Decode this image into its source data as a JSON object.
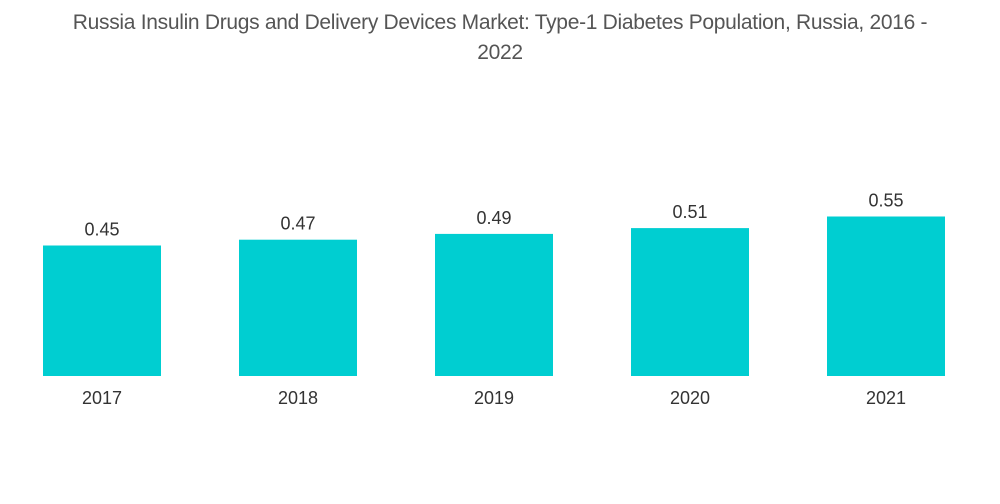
{
  "chart_data": {
    "type": "bar",
    "title": "Russia Insulin Drugs and Delivery Devices Market: Type-1 Diabetes Population, Russia, 2016 - 2022",
    "title_lines": [
      "Russia Insulin Drugs and Delivery Devices Market: Type-1 Diabetes Population, Russia, 2016 -",
      "2022"
    ],
    "categories": [
      "2017",
      "2018",
      "2019",
      "2020",
      "2021"
    ],
    "values": [
      0.45,
      0.47,
      0.49,
      0.51,
      0.55
    ],
    "value_labels": [
      "0.45",
      "0.47",
      "0.49",
      "0.51",
      "0.55"
    ],
    "xlabel": "",
    "ylabel": "",
    "grid": false,
    "legend": "none",
    "bar_color": "#00CED1"
  }
}
